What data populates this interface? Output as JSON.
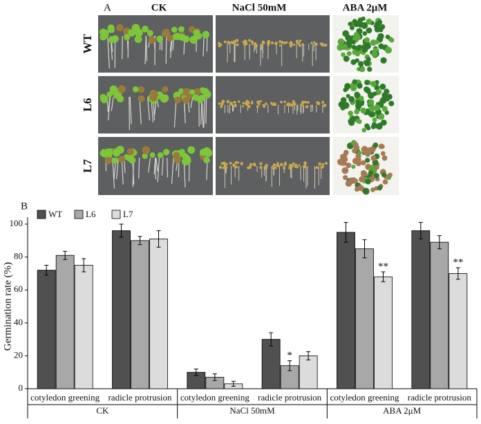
{
  "panel_a": {
    "label": "A",
    "columns": [
      "CK",
      "NaCl 50mM",
      "ABA 2μM"
    ],
    "rows": [
      "WT",
      "L6",
      "L7"
    ]
  },
  "chart_data": {
    "type": "bar",
    "panel_label": "B",
    "y_label": "Germination rate (%)",
    "categories": [
      "cotyledon greening",
      "radicle protrusion",
      "cotyledon greening",
      "radicle protrusion",
      "cotyledon greening",
      "radicle protrusion"
    ],
    "groups": [
      "CK",
      "NaCl 50mM",
      "ABA 2μM"
    ],
    "series": [
      {
        "name": "WT",
        "color": "#505050",
        "values": [
          72,
          96,
          10,
          30,
          95,
          96
        ],
        "errors": [
          3,
          4,
          2,
          4,
          6,
          5
        ]
      },
      {
        "name": "L6",
        "color": "#a8a8a8",
        "values": [
          81,
          90,
          7,
          14,
          85,
          89
        ],
        "errors": [
          2.5,
          2.5,
          2,
          3,
          5.5,
          4
        ],
        "significance": [
          null,
          null,
          null,
          "*",
          null,
          null
        ]
      },
      {
        "name": "L7",
        "color": "#dcdcdc",
        "values": [
          75,
          91,
          3,
          20,
          68,
          70
        ],
        "errors": [
          4,
          5,
          1.5,
          2.5,
          3,
          3.5
        ],
        "significance": [
          null,
          null,
          null,
          null,
          "**",
          "**"
        ]
      }
    ],
    "ylim": [
      0,
      100
    ],
    "yticks": [
      0,
      20,
      40,
      60,
      80,
      100
    ]
  }
}
